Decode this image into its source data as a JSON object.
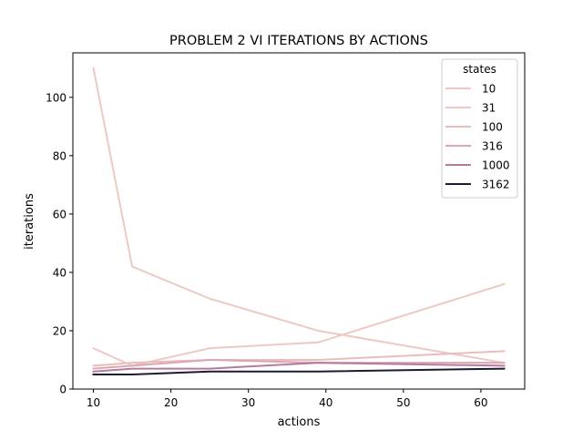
{
  "chart_data": {
    "type": "line",
    "title": "PROBLEM 2 VI ITERATIONS BY ACTIONS",
    "xlabel": "actions",
    "ylabel": "iterations",
    "xlim": [
      7.35,
      65.65
    ],
    "ylim": [
      0,
      115.25
    ],
    "xticks": [
      10,
      20,
      30,
      40,
      50,
      60
    ],
    "yticks": [
      0,
      20,
      40,
      60,
      80,
      100
    ],
    "grid": false,
    "legend": {
      "title": "states",
      "placement": "top-right"
    },
    "x": [
      10,
      15,
      25,
      39,
      63
    ],
    "series": [
      {
        "name": "10",
        "color": "#eccac3",
        "values": [
          14,
          8,
          14,
          16,
          36
        ]
      },
      {
        "name": "31",
        "color": "#eccac3",
        "values": [
          110,
          42,
          31,
          20,
          9
        ]
      },
      {
        "name": "100",
        "color": "#e8bdbb",
        "values": [
          8,
          9,
          10,
          10,
          13
        ]
      },
      {
        "name": "316",
        "color": "#dca6b3",
        "values": [
          7,
          8,
          10,
          9,
          9
        ]
      },
      {
        "name": "1000",
        "color": "#b67a9c",
        "values": [
          6,
          7,
          7,
          9,
          8
        ]
      },
      {
        "name": "3162",
        "color": "#1c1a35",
        "values": [
          5,
          5,
          6,
          6,
          7
        ]
      }
    ]
  }
}
